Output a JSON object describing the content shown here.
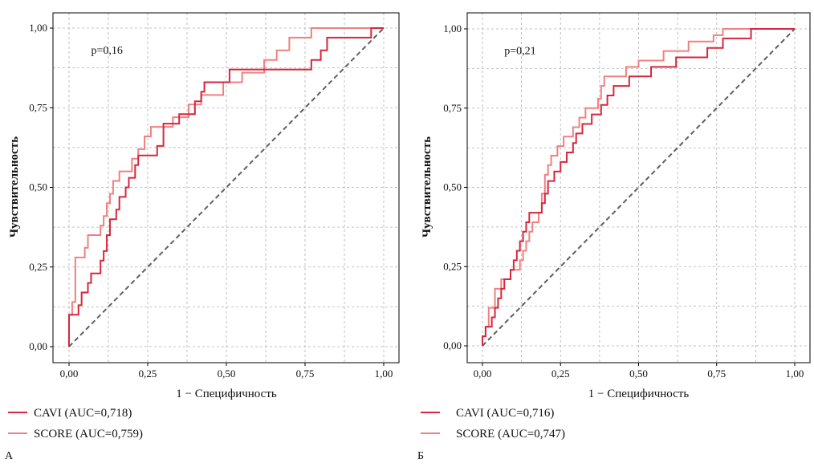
{
  "chart_data": [
    {
      "type": "line",
      "panel_label": "А",
      "annotation": "p=0,16",
      "xlabel": "1 − Специфичность",
      "ylabel": "Чувствительность",
      "xlim": [
        0,
        1
      ],
      "ylim": [
        0,
        1
      ],
      "x_ticks": [
        "0,00",
        "0,25",
        "0,50",
        "0,75",
        "1,00"
      ],
      "y_ticks": [
        "0,00",
        "0,25",
        "0,50",
        "0,75",
        "1,00"
      ],
      "grid": true,
      "legend_position": "bottom-left-outside",
      "reference_line": [
        [
          0,
          0
        ],
        [
          1,
          1
        ]
      ],
      "series": [
        {
          "name": "CAVI (AUC=0,718)",
          "color": "#d7263d",
          "points": [
            [
              0,
              0
            ],
            [
              0,
              0.1
            ],
            [
              0.03,
              0.1
            ],
            [
              0.03,
              0.13
            ],
            [
              0.04,
              0.13
            ],
            [
              0.04,
              0.17
            ],
            [
              0.06,
              0.17
            ],
            [
              0.06,
              0.2
            ],
            [
              0.07,
              0.2
            ],
            [
              0.07,
              0.23
            ],
            [
              0.1,
              0.23
            ],
            [
              0.1,
              0.27
            ],
            [
              0.11,
              0.27
            ],
            [
              0.11,
              0.3
            ],
            [
              0.12,
              0.3
            ],
            [
              0.12,
              0.35
            ],
            [
              0.13,
              0.35
            ],
            [
              0.13,
              0.4
            ],
            [
              0.15,
              0.4
            ],
            [
              0.15,
              0.43
            ],
            [
              0.16,
              0.43
            ],
            [
              0.16,
              0.47
            ],
            [
              0.18,
              0.47
            ],
            [
              0.18,
              0.5
            ],
            [
              0.19,
              0.5
            ],
            [
              0.19,
              0.53
            ],
            [
              0.21,
              0.53
            ],
            [
              0.21,
              0.57
            ],
            [
              0.22,
              0.57
            ],
            [
              0.22,
              0.6
            ],
            [
              0.28,
              0.6
            ],
            [
              0.28,
              0.63
            ],
            [
              0.3,
              0.63
            ],
            [
              0.3,
              0.7
            ],
            [
              0.35,
              0.7
            ],
            [
              0.35,
              0.73
            ],
            [
              0.4,
              0.73
            ],
            [
              0.4,
              0.77
            ],
            [
              0.42,
              0.77
            ],
            [
              0.42,
              0.8
            ],
            [
              0.43,
              0.8
            ],
            [
              0.43,
              0.83
            ],
            [
              0.51,
              0.83
            ],
            [
              0.51,
              0.87
            ],
            [
              0.77,
              0.87
            ],
            [
              0.77,
              0.9
            ],
            [
              0.8,
              0.9
            ],
            [
              0.8,
              0.93
            ],
            [
              0.82,
              0.93
            ],
            [
              0.82,
              0.97
            ],
            [
              0.96,
              0.97
            ],
            [
              0.96,
              1
            ],
            [
              1,
              1
            ]
          ]
        },
        {
          "name": "SCORE (AUC=0,759)",
          "color": "#f08080",
          "points": [
            [
              0,
              0
            ],
            [
              0,
              0.1
            ],
            [
              0.01,
              0.1
            ],
            [
              0.01,
              0.14
            ],
            [
              0.02,
              0.14
            ],
            [
              0.02,
              0.28
            ],
            [
              0.05,
              0.28
            ],
            [
              0.05,
              0.31
            ],
            [
              0.06,
              0.31
            ],
            [
              0.06,
              0.35
            ],
            [
              0.1,
              0.35
            ],
            [
              0.1,
              0.38
            ],
            [
              0.11,
              0.38
            ],
            [
              0.11,
              0.41
            ],
            [
              0.12,
              0.41
            ],
            [
              0.12,
              0.45
            ],
            [
              0.13,
              0.45
            ],
            [
              0.13,
              0.48
            ],
            [
              0.14,
              0.48
            ],
            [
              0.14,
              0.52
            ],
            [
              0.16,
              0.52
            ],
            [
              0.16,
              0.55
            ],
            [
              0.2,
              0.55
            ],
            [
              0.2,
              0.59
            ],
            [
              0.22,
              0.59
            ],
            [
              0.22,
              0.62
            ],
            [
              0.24,
              0.62
            ],
            [
              0.24,
              0.66
            ],
            [
              0.26,
              0.66
            ],
            [
              0.26,
              0.69
            ],
            [
              0.33,
              0.69
            ],
            [
              0.33,
              0.72
            ],
            [
              0.38,
              0.72
            ],
            [
              0.38,
              0.76
            ],
            [
              0.42,
              0.76
            ],
            [
              0.42,
              0.79
            ],
            [
              0.49,
              0.79
            ],
            [
              0.49,
              0.83
            ],
            [
              0.55,
              0.83
            ],
            [
              0.55,
              0.86
            ],
            [
              0.62,
              0.86
            ],
            [
              0.62,
              0.9
            ],
            [
              0.66,
              0.9
            ],
            [
              0.66,
              0.93
            ],
            [
              0.7,
              0.93
            ],
            [
              0.7,
              0.97
            ],
            [
              0.77,
              0.97
            ],
            [
              0.77,
              1
            ],
            [
              1,
              1
            ]
          ]
        }
      ]
    },
    {
      "type": "line",
      "panel_label": "Б",
      "annotation": "p=0,21",
      "xlabel": "1 − Специфичность",
      "ylabel": "Чувствительность",
      "xlim": [
        0,
        1
      ],
      "ylim": [
        0,
        1
      ],
      "x_ticks": [
        "0,00",
        "0,25",
        "0,50",
        "0,75",
        "1,00"
      ],
      "y_ticks": [
        "0,00",
        "0,25",
        "0,50",
        "0,75",
        "1,00"
      ],
      "grid": true,
      "legend_position": "bottom-left-outside",
      "reference_line": [
        [
          0,
          0
        ],
        [
          1,
          1
        ]
      ],
      "series": [
        {
          "name": "CAVI (AUC=0,716)",
          "color": "#d7263d",
          "points": [
            [
              0,
              0
            ],
            [
              0,
              0.03
            ],
            [
              0.01,
              0.03
            ],
            [
              0.01,
              0.06
            ],
            [
              0.03,
              0.06
            ],
            [
              0.03,
              0.09
            ],
            [
              0.04,
              0.09
            ],
            [
              0.04,
              0.12
            ],
            [
              0.05,
              0.12
            ],
            [
              0.05,
              0.15
            ],
            [
              0.06,
              0.15
            ],
            [
              0.06,
              0.18
            ],
            [
              0.07,
              0.18
            ],
            [
              0.07,
              0.21
            ],
            [
              0.09,
              0.21
            ],
            [
              0.09,
              0.24
            ],
            [
              0.1,
              0.24
            ],
            [
              0.1,
              0.27
            ],
            [
              0.11,
              0.27
            ],
            [
              0.11,
              0.3
            ],
            [
              0.12,
              0.3
            ],
            [
              0.12,
              0.33
            ],
            [
              0.13,
              0.33
            ],
            [
              0.13,
              0.36
            ],
            [
              0.14,
              0.36
            ],
            [
              0.14,
              0.39
            ],
            [
              0.15,
              0.39
            ],
            [
              0.15,
              0.42
            ],
            [
              0.19,
              0.42
            ],
            [
              0.19,
              0.45
            ],
            [
              0.2,
              0.45
            ],
            [
              0.2,
              0.48
            ],
            [
              0.21,
              0.48
            ],
            [
              0.21,
              0.52
            ],
            [
              0.23,
              0.52
            ],
            [
              0.23,
              0.55
            ],
            [
              0.25,
              0.55
            ],
            [
              0.25,
              0.58
            ],
            [
              0.27,
              0.58
            ],
            [
              0.27,
              0.61
            ],
            [
              0.29,
              0.61
            ],
            [
              0.29,
              0.64
            ],
            [
              0.3,
              0.64
            ],
            [
              0.3,
              0.67
            ],
            [
              0.32,
              0.67
            ],
            [
              0.32,
              0.7
            ],
            [
              0.35,
              0.7
            ],
            [
              0.35,
              0.73
            ],
            [
              0.38,
              0.73
            ],
            [
              0.38,
              0.76
            ],
            [
              0.4,
              0.76
            ],
            [
              0.4,
              0.79
            ],
            [
              0.42,
              0.79
            ],
            [
              0.42,
              0.82
            ],
            [
              0.47,
              0.82
            ],
            [
              0.47,
              0.85
            ],
            [
              0.54,
              0.85
            ],
            [
              0.54,
              0.88
            ],
            [
              0.62,
              0.88
            ],
            [
              0.62,
              0.91
            ],
            [
              0.72,
              0.91
            ],
            [
              0.72,
              0.94
            ],
            [
              0.77,
              0.94
            ],
            [
              0.77,
              0.97
            ],
            [
              0.86,
              0.97
            ],
            [
              0.86,
              1
            ],
            [
              1,
              1
            ]
          ]
        },
        {
          "name": "SCORE (AUC=0,747)",
          "color": "#f08080",
          "points": [
            [
              0,
              0
            ],
            [
              0,
              0.03
            ],
            [
              0.01,
              0.03
            ],
            [
              0.01,
              0.06
            ],
            [
              0.02,
              0.06
            ],
            [
              0.02,
              0.12
            ],
            [
              0.04,
              0.12
            ],
            [
              0.04,
              0.18
            ],
            [
              0.06,
              0.18
            ],
            [
              0.06,
              0.21
            ],
            [
              0.09,
              0.21
            ],
            [
              0.09,
              0.24
            ],
            [
              0.12,
              0.24
            ],
            [
              0.12,
              0.27
            ],
            [
              0.13,
              0.27
            ],
            [
              0.13,
              0.3
            ],
            [
              0.14,
              0.3
            ],
            [
              0.14,
              0.33
            ],
            [
              0.15,
              0.33
            ],
            [
              0.15,
              0.36
            ],
            [
              0.16,
              0.36
            ],
            [
              0.16,
              0.39
            ],
            [
              0.18,
              0.39
            ],
            [
              0.18,
              0.42
            ],
            [
              0.19,
              0.42
            ],
            [
              0.19,
              0.48
            ],
            [
              0.2,
              0.48
            ],
            [
              0.2,
              0.54
            ],
            [
              0.21,
              0.54
            ],
            [
              0.21,
              0.57
            ],
            [
              0.22,
              0.57
            ],
            [
              0.22,
              0.6
            ],
            [
              0.24,
              0.6
            ],
            [
              0.24,
              0.63
            ],
            [
              0.26,
              0.63
            ],
            [
              0.26,
              0.66
            ],
            [
              0.29,
              0.66
            ],
            [
              0.29,
              0.69
            ],
            [
              0.31,
              0.69
            ],
            [
              0.31,
              0.72
            ],
            [
              0.33,
              0.72
            ],
            [
              0.33,
              0.75
            ],
            [
              0.37,
              0.75
            ],
            [
              0.37,
              0.78
            ],
            [
              0.38,
              0.78
            ],
            [
              0.38,
              0.82
            ],
            [
              0.39,
              0.82
            ],
            [
              0.39,
              0.85
            ],
            [
              0.46,
              0.85
            ],
            [
              0.46,
              0.88
            ],
            [
              0.5,
              0.88
            ],
            [
              0.5,
              0.9
            ],
            [
              0.58,
              0.9
            ],
            [
              0.58,
              0.93
            ],
            [
              0.66,
              0.93
            ],
            [
              0.66,
              0.96
            ],
            [
              0.74,
              0.96
            ],
            [
              0.74,
              0.98
            ],
            [
              0.77,
              0.98
            ],
            [
              0.77,
              1
            ],
            [
              1,
              1
            ]
          ]
        }
      ]
    }
  ]
}
